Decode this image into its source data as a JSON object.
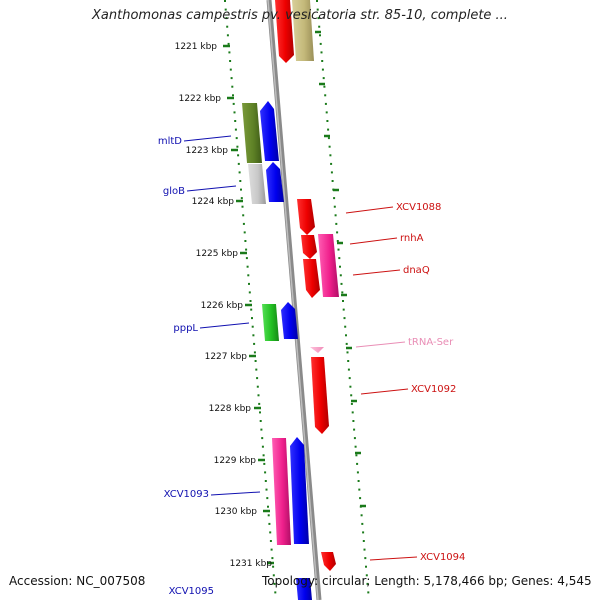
{
  "title": "Xanthomonas campestris pv. vesicatoria str. 85-10, complete ...",
  "footer": {
    "accession": "Accession: NC_007508",
    "summary": "Topology: circular; Length: 5,178,466 bp; Genes: 4,545"
  },
  "colors": {
    "backbone": "#8a8a8a",
    "tick": "#1a7a1a",
    "left_label": "#1010b0",
    "right_label": "#cc1111",
    "trna_label": "#e98db5"
  },
  "scale": [
    "1221 kbp",
    "1222 kbp",
    "1223 kbp",
    "1224 kbp",
    "1225 kbp",
    "1226 kbp",
    "1227 kbp",
    "1228 kbp",
    "1229 kbp",
    "1230 kbp",
    "1231 kbp"
  ],
  "genes_left": [
    {
      "name": "mltD",
      "label": "mltD"
    },
    {
      "name": "gloB",
      "label": "gloB"
    },
    {
      "name": "pppL",
      "label": "pppL"
    },
    {
      "name": "XCV1093",
      "label": "XCV1093"
    },
    {
      "name": "XCV1095",
      "label": "XCV1095"
    }
  ],
  "genes_right": [
    {
      "name": "XCV1088",
      "label": "XCV1088"
    },
    {
      "name": "rnhA",
      "label": "rnhA"
    },
    {
      "name": "dnaQ",
      "label": "dnaQ"
    },
    {
      "name": "tRNA-Ser",
      "label": "tRNA-Ser"
    },
    {
      "name": "XCV1092",
      "label": "XCV1092"
    },
    {
      "name": "XCV1094",
      "label": "XCV1094"
    }
  ]
}
